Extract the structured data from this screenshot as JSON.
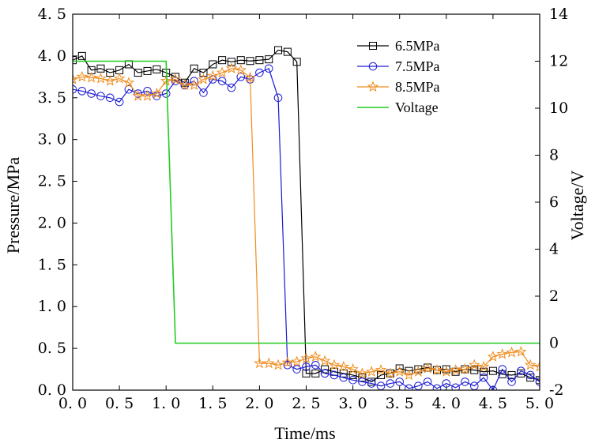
{
  "chart_data": {
    "type": "line",
    "xlabel": "Time/ms",
    "ylabel_left": "Pressure/MPa",
    "ylabel_right": "Voltage/V",
    "xlim": [
      0,
      5
    ],
    "ylim_left": [
      0,
      4.5
    ],
    "ylim_right": [
      -2,
      14
    ],
    "x_ticks": [
      "0. 0",
      "0. 5",
      "1. 0",
      "1. 5",
      "2. 0",
      "2. 5",
      "3. 0",
      "3. 5",
      "4. 0",
      "4. 5",
      "5. 0"
    ],
    "y_left_ticks": [
      "0. 0",
      "0. 5",
      "1. 0",
      "1. 5",
      "2. 0",
      "2. 5",
      "3. 0",
      "3. 5",
      "4. 0",
      "4. 5"
    ],
    "y_right_ticks": [
      "-2",
      "0",
      "2",
      "4",
      "6",
      "8",
      "10",
      "12",
      "14"
    ],
    "legend_position": "top-right",
    "series": [
      {
        "name": "6.5MPa",
        "axis": "left",
        "color": "#000000",
        "marker": "square",
        "x": [
          0.0,
          0.1,
          0.2,
          0.3,
          0.4,
          0.5,
          0.6,
          0.7,
          0.8,
          0.9,
          1.0,
          1.1,
          1.2,
          1.3,
          1.4,
          1.5,
          1.6,
          1.7,
          1.8,
          1.9,
          2.0,
          2.1,
          2.2,
          2.3,
          2.4,
          2.5,
          2.6,
          2.7,
          2.8,
          2.9,
          3.0,
          3.1,
          3.2,
          3.3,
          3.4,
          3.5,
          3.6,
          3.7,
          3.8,
          3.9,
          4.0,
          4.1,
          4.2,
          4.3,
          4.4,
          4.5,
          4.6,
          4.7,
          4.8,
          4.9,
          5.0
        ],
        "values": [
          3.95,
          4.0,
          3.83,
          3.85,
          3.8,
          3.83,
          3.9,
          3.8,
          3.82,
          3.84,
          3.8,
          3.75,
          3.68,
          3.85,
          3.8,
          3.9,
          3.95,
          3.93,
          3.95,
          3.94,
          3.95,
          3.96,
          4.07,
          4.05,
          3.93,
          0.2,
          0.2,
          0.25,
          0.22,
          0.2,
          0.18,
          0.15,
          0.1,
          0.18,
          0.2,
          0.26,
          0.23,
          0.25,
          0.27,
          0.24,
          0.25,
          0.22,
          0.25,
          0.24,
          0.22,
          0.23,
          0.19,
          0.18,
          0.2,
          0.15,
          0.12
        ]
      },
      {
        "name": "7.5MPa",
        "axis": "left",
        "color": "#1a1ad4",
        "marker": "circle",
        "x": [
          0.0,
          0.1,
          0.2,
          0.3,
          0.4,
          0.5,
          0.6,
          0.7,
          0.8,
          0.9,
          1.0,
          1.1,
          1.2,
          1.3,
          1.4,
          1.5,
          1.6,
          1.7,
          1.8,
          1.9,
          2.0,
          2.1,
          2.2,
          2.3,
          2.4,
          2.5,
          2.6,
          2.7,
          2.8,
          2.9,
          3.0,
          3.1,
          3.2,
          3.3,
          3.4,
          3.5,
          3.6,
          3.7,
          3.8,
          3.9,
          4.0,
          4.1,
          4.2,
          4.3,
          4.4,
          4.5,
          4.6,
          4.7,
          4.8,
          4.9,
          5.0
        ],
        "values": [
          3.6,
          3.58,
          3.55,
          3.52,
          3.5,
          3.45,
          3.6,
          3.55,
          3.58,
          3.52,
          3.55,
          3.7,
          3.65,
          3.7,
          3.56,
          3.72,
          3.7,
          3.62,
          3.75,
          3.72,
          3.8,
          3.85,
          3.5,
          0.3,
          0.25,
          0.28,
          0.3,
          0.2,
          0.18,
          0.15,
          0.12,
          0.1,
          0.08,
          0.05,
          0.08,
          0.1,
          0.02,
          0.05,
          0.1,
          0.02,
          0.08,
          0.03,
          0.1,
          0.05,
          0.15,
          0.0,
          0.25,
          0.1,
          0.23,
          0.18,
          0.1
        ]
      },
      {
        "name": "8.5MPa",
        "axis": "left",
        "color": "#f08c1e",
        "marker": "star",
        "x": [
          0.0,
          0.1,
          0.2,
          0.3,
          0.4,
          0.5,
          0.6,
          0.7,
          0.8,
          0.9,
          1.0,
          1.1,
          1.2,
          1.3,
          1.4,
          1.5,
          1.6,
          1.7,
          1.8,
          1.9,
          2.0,
          2.1,
          2.2,
          2.3,
          2.4,
          2.5,
          2.6,
          2.7,
          2.8,
          2.9,
          3.0,
          3.1,
          3.2,
          3.3,
          3.4,
          3.5,
          3.6,
          3.7,
          3.8,
          3.9,
          4.0,
          4.1,
          4.2,
          4.3,
          4.4,
          4.5,
          4.6,
          4.7,
          4.8,
          4.9,
          5.0
        ],
        "values": [
          3.72,
          3.75,
          3.74,
          3.73,
          3.7,
          3.73,
          3.68,
          3.52,
          3.52,
          3.55,
          3.7,
          3.72,
          3.65,
          3.65,
          3.72,
          3.76,
          3.8,
          3.85,
          3.83,
          3.74,
          0.32,
          0.32,
          0.3,
          0.33,
          0.34,
          0.38,
          0.4,
          0.35,
          0.3,
          0.28,
          0.25,
          0.2,
          0.22,
          0.24,
          0.2,
          0.22,
          0.18,
          0.22,
          0.26,
          0.24,
          0.22,
          0.24,
          0.25,
          0.3,
          0.28,
          0.4,
          0.43,
          0.45,
          0.46,
          0.3,
          0.28
        ]
      },
      {
        "name": "Voltage",
        "axis": "right",
        "color": "#22cc22",
        "marker": "none",
        "x": [
          0.0,
          1.0,
          1.1,
          5.0
        ],
        "values": [
          12,
          12,
          0,
          0
        ]
      }
    ]
  }
}
